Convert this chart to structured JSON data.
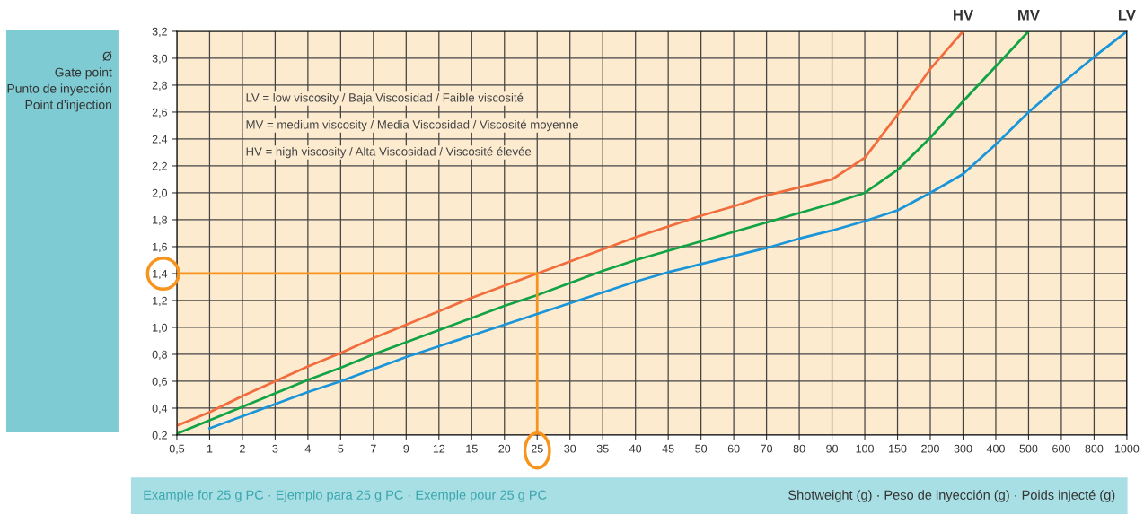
{
  "chart_data": {
    "type": "line",
    "categories": [
      "0,5",
      "1",
      "2",
      "3",
      "4",
      "5",
      "7",
      "9",
      "12",
      "15",
      "20",
      "25",
      "30",
      "35",
      "40",
      "45",
      "50",
      "60",
      "70",
      "80",
      "90",
      "100",
      "150",
      "200",
      "300",
      "400",
      "500",
      "600",
      "800",
      "1000"
    ],
    "series": [
      {
        "name": "HV",
        "color": "#f26d3d",
        "values": [
          0.27,
          0.37,
          0.49,
          0.6,
          0.71,
          0.81,
          0.92,
          1.02,
          1.12,
          1.22,
          1.31,
          1.4,
          1.49,
          1.58,
          1.67,
          1.75,
          1.83,
          1.9,
          1.98,
          2.04,
          2.1,
          2.26,
          2.58,
          2.92,
          3.2,
          null,
          null,
          null,
          null,
          null
        ]
      },
      {
        "name": "MV",
        "color": "#12a345",
        "values": [
          0.21,
          0.31,
          0.41,
          0.51,
          0.61,
          0.7,
          0.8,
          0.89,
          0.98,
          1.07,
          1.16,
          1.24,
          1.33,
          1.42,
          1.5,
          1.57,
          1.64,
          1.71,
          1.78,
          1.85,
          1.92,
          2.0,
          2.17,
          2.41,
          2.68,
          2.94,
          3.2,
          null,
          null,
          null
        ]
      },
      {
        "type": "line",
        "color": "#f7941d",
        "x": [
          "0,5",
          "25",
          "25"
        ],
        "values": [
          1.4,
          1.4,
          0.2
        ]
      },
      {
        "name": "LV",
        "color": "#1a95d8",
        "values": [
          null,
          0.25,
          0.34,
          0.43,
          0.52,
          0.6,
          0.69,
          0.78,
          0.86,
          0.94,
          1.02,
          1.1,
          1.18,
          1.26,
          1.34,
          1.41,
          1.47,
          1.53,
          1.59,
          1.66,
          1.72,
          1.79,
          1.87,
          2.0,
          2.14,
          2.36,
          2.6,
          2.81,
          3.01,
          3.2
        ]
      }
    ],
    "ylim": [
      0.2,
      3.2
    ],
    "yticks": [
      {
        "value": 0.2,
        "label": "0,2"
      },
      {
        "value": 0.4,
        "label": "0,4"
      },
      {
        "value": 0.6,
        "label": "0,6"
      },
      {
        "value": 0.8,
        "label": "0,8"
      },
      {
        "value": 1.0,
        "label": "1,0"
      },
      {
        "value": 1.2,
        "label": "1,2"
      },
      {
        "value": 1.4,
        "label": "1,4"
      },
      {
        "value": 1.6,
        "label": "1,6"
      },
      {
        "value": 1.8,
        "label": "1,8"
      },
      {
        "value": 2.0,
        "label": "2,0"
      },
      {
        "value": 2.2,
        "label": "2,2"
      },
      {
        "value": 2.4,
        "label": "2,4"
      },
      {
        "value": 2.6,
        "label": "2,6"
      },
      {
        "value": 2.8,
        "label": "2,8"
      },
      {
        "value": 3.0,
        "label": "3,0"
      },
      {
        "value": 3.2,
        "label": "3,2"
      }
    ],
    "ylabel": "Ø\nGate point\nPunto de inyección\nPoint d’injection",
    "xlabel": "Shotweight (g) · Peso de inyección (g) · Poids injecté (g)",
    "annotations": [
      "LV = low viscosity / Baja Viscosidad / Faible viscosité",
      "MV = medium viscosity / Media Viscosidad / Viscosité moyenne",
      "HV = high viscosity / Alta Viscosidad / Viscosité élevée",
      "Example for 25 g PC · Ejemplo para 25 g PC · Exemple pour 25 g PC"
    ],
    "grid": true,
    "legend": false,
    "marker": "none",
    "line_style": "solid"
  }
}
